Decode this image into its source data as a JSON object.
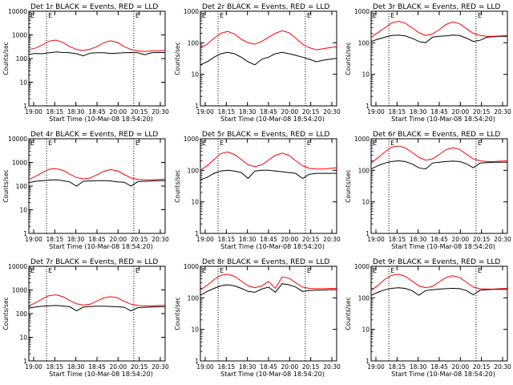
{
  "panel_titles": [
    "Det 1r BLACK = Events, RED = LLD",
    "Det 2r BLACK = Events, RED = LLD",
    "Det 3r BLACK = Events, RED = LLD",
    "Det 4r BLACK = Events, RED = LLD",
    "Det 5r BLACK = Events, RED = LLD",
    "Det 6r BLACK = Events, RED = LLD",
    "Det 7r BLACK = Events, RED = LLD",
    "Det 8r BLACK = Events, RED = LLD",
    "Det 9r BLACK = Events, RED = LLD"
  ],
  "xlabel": "Start Time (10-Mar-08 18:54:20)",
  "ylabel": "Counts/sec",
  "marker_labels": [
    "E",
    "E"
  ],
  "x_tick_labels": [
    "19:00",
    "18:15",
    "18:30",
    "18:45",
    "20:00",
    "20:15",
    "20:30"
  ],
  "y_tick_labels": [
    "1",
    "10",
    "100",
    "1000",
    "10000"
  ],
  "colors": {
    "events": "#000000",
    "lld": "#ff0000",
    "axes": "#000000"
  },
  "chart_data": [
    {
      "type": "line",
      "title": "Det 1r BLACK = Events, RED = LLD",
      "xlabel": "Start Time (10-Mar-08 18:54:20)",
      "ylabel": "Counts/sec",
      "yscale": "log",
      "ylim": [
        1,
        10000
      ],
      "x": [
        0,
        0.05,
        0.1,
        0.15,
        0.2,
        0.25,
        0.3,
        0.35,
        0.4,
        0.45,
        0.5,
        0.55,
        0.6,
        0.65,
        0.7,
        0.75,
        0.8,
        0.85,
        0.9,
        0.95,
        1.0
      ],
      "series": [
        {
          "name": "Events",
          "values": [
            150,
            165,
            160,
            175,
            190,
            180,
            175,
            160,
            130,
            170,
            175,
            175,
            165,
            170,
            175,
            180,
            175,
            145,
            175,
            180,
            180
          ]
        },
        {
          "name": "LLD",
          "values": [
            240,
            280,
            380,
            550,
            600,
            480,
            320,
            240,
            220,
            250,
            320,
            470,
            560,
            480,
            320,
            240,
            210,
            200,
            210,
            215,
            220
          ]
        }
      ],
      "markers": [
        "E",
        "E"
      ]
    },
    {
      "type": "line",
      "title": "Det 2r BLACK = Events, RED = LLD",
      "xlabel": "Start Time (10-Mar-08 18:54:20)",
      "ylabel": "Counts/sec",
      "yscale": "log",
      "ylim": [
        1,
        1000
      ],
      "x": [
        0,
        0.05,
        0.1,
        0.15,
        0.2,
        0.25,
        0.3,
        0.35,
        0.4,
        0.45,
        0.5,
        0.55,
        0.6,
        0.65,
        0.7,
        0.75,
        0.8,
        0.85,
        0.9,
        0.95,
        1.0
      ],
      "series": [
        {
          "name": "Events",
          "values": [
            20,
            25,
            35,
            45,
            50,
            45,
            35,
            25,
            20,
            30,
            35,
            45,
            50,
            45,
            40,
            35,
            30,
            25,
            28,
            30,
            32
          ]
        },
        {
          "name": "LLD",
          "values": [
            70,
            90,
            140,
            200,
            230,
            190,
            130,
            100,
            90,
            110,
            150,
            200,
            240,
            210,
            140,
            90,
            70,
            60,
            65,
            70,
            75
          ]
        }
      ],
      "markers": [
        "E",
        "E"
      ]
    },
    {
      "type": "line",
      "title": "Det 3r BLACK = Events, RED = LLD",
      "xlabel": "Start Time (10-Mar-08 18:54:20)",
      "ylabel": "Counts/sec",
      "yscale": "log",
      "ylim": [
        1,
        1000
      ],
      "x": [
        0,
        0.05,
        0.1,
        0.15,
        0.2,
        0.25,
        0.3,
        0.35,
        0.4,
        0.45,
        0.5,
        0.55,
        0.6,
        0.65,
        0.7,
        0.75,
        0.8,
        0.85,
        0.9,
        0.95,
        1.0
      ],
      "series": [
        {
          "name": "Events",
          "values": [
            110,
            130,
            150,
            170,
            175,
            165,
            140,
            110,
            100,
            150,
            160,
            165,
            175,
            170,
            140,
            110,
            120,
            150,
            155,
            160,
            160
          ]
        },
        {
          "name": "LLD",
          "values": [
            150,
            210,
            300,
            420,
            480,
            420,
            300,
            210,
            170,
            190,
            260,
            380,
            460,
            400,
            280,
            200,
            170,
            160,
            160,
            165,
            170
          ]
        }
      ],
      "markers": [
        "E",
        "E"
      ]
    },
    {
      "type": "line",
      "title": "Det 4r BLACK = Events, RED = LLD",
      "xlabel": "Start Time (10-Mar-08 18:54:20)",
      "ylabel": "Counts/sec",
      "yscale": "log",
      "ylim": [
        1,
        10000
      ],
      "x": [
        0,
        0.05,
        0.1,
        0.15,
        0.2,
        0.25,
        0.3,
        0.35,
        0.4,
        0.45,
        0.5,
        0.55,
        0.6,
        0.65,
        0.7,
        0.75,
        0.8,
        0.85,
        0.9,
        0.95,
        1.0
      ],
      "series": [
        {
          "name": "Events",
          "values": [
            140,
            160,
            170,
            180,
            185,
            170,
            150,
            100,
            160,
            165,
            170,
            170,
            165,
            150,
            145,
            100,
            155,
            160,
            165,
            170,
            170
          ]
        },
        {
          "name": "LLD",
          "values": [
            190,
            260,
            380,
            520,
            550,
            460,
            320,
            230,
            200,
            220,
            300,
            420,
            500,
            440,
            310,
            220,
            190,
            185,
            185,
            190,
            195
          ]
        }
      ],
      "markers": [
        "E",
        "E"
      ]
    },
    {
      "type": "line",
      "title": "Det 5r BLACK = Events, RED = LLD",
      "xlabel": "Start Time (10-Mar-08 18:54:20)",
      "ylabel": "Counts/sec",
      "yscale": "log",
      "ylim": [
        1,
        1000
      ],
      "x": [
        0,
        0.05,
        0.1,
        0.15,
        0.2,
        0.25,
        0.3,
        0.35,
        0.4,
        0.45,
        0.5,
        0.55,
        0.6,
        0.65,
        0.7,
        0.75,
        0.8,
        0.85,
        0.9,
        0.95,
        1.0
      ],
      "series": [
        {
          "name": "Events",
          "values": [
            50,
            60,
            80,
            95,
            100,
            95,
            85,
            55,
            95,
            100,
            100,
            95,
            90,
            85,
            80,
            55,
            75,
            80,
            80,
            80,
            80
          ]
        },
        {
          "name": "LLD",
          "values": [
            100,
            140,
            220,
            340,
            380,
            320,
            220,
            150,
            130,
            150,
            210,
            300,
            350,
            300,
            200,
            140,
            115,
            110,
            110,
            115,
            120
          ]
        }
      ],
      "markers": [
        "E",
        "E"
      ]
    },
    {
      "type": "line",
      "title": "Det 6r BLACK = Events, RED = LLD",
      "xlabel": "Start Time (10-Mar-08 18:54:20)",
      "ylabel": "Counts/sec",
      "yscale": "log",
      "ylim": [
        1,
        1000
      ],
      "x": [
        0,
        0.05,
        0.1,
        0.15,
        0.2,
        0.25,
        0.3,
        0.35,
        0.4,
        0.45,
        0.5,
        0.55,
        0.6,
        0.65,
        0.7,
        0.75,
        0.8,
        0.85,
        0.9,
        0.95,
        1.0
      ],
      "series": [
        {
          "name": "Events",
          "values": [
            110,
            140,
            170,
            190,
            200,
            190,
            160,
            120,
            110,
            170,
            180,
            190,
            195,
            190,
            160,
            120,
            170,
            175,
            180,
            180,
            180
          ]
        },
        {
          "name": "LLD",
          "values": [
            170,
            250,
            380,
            540,
            590,
            520,
            370,
            260,
            210,
            230,
            320,
            450,
            520,
            460,
            320,
            230,
            200,
            190,
            190,
            195,
            200
          ]
        }
      ],
      "markers": [
        "E",
        "E"
      ]
    },
    {
      "type": "line",
      "title": "Det 7r BLACK = Events, RED = LLD",
      "xlabel": "Start Time (10-Mar-08 18:54:20)",
      "ylabel": "Counts/sec",
      "yscale": "log",
      "ylim": [
        1,
        10000
      ],
      "x": [
        0,
        0.05,
        0.1,
        0.15,
        0.2,
        0.25,
        0.3,
        0.35,
        0.4,
        0.45,
        0.5,
        0.55,
        0.6,
        0.65,
        0.7,
        0.75,
        0.8,
        0.85,
        0.9,
        0.95,
        1.0
      ],
      "series": [
        {
          "name": "Events",
          "values": [
            170,
            190,
            205,
            215,
            220,
            210,
            195,
            130,
            190,
            200,
            205,
            205,
            200,
            195,
            185,
            130,
            180,
            185,
            190,
            195,
            195
          ]
        },
        {
          "name": "LLD",
          "values": [
            210,
            290,
            420,
            580,
            620,
            520,
            360,
            260,
            230,
            250,
            340,
            460,
            520,
            470,
            330,
            250,
            220,
            215,
            215,
            220,
            225
          ]
        }
      ],
      "markers": [
        "E",
        "E"
      ]
    },
    {
      "type": "line",
      "title": "Det 8r BLACK = Events, RED = LLD",
      "xlabel": "Start Time (10-Mar-08 18:54:20)",
      "ylabel": "Counts/sec",
      "yscale": "log",
      "ylim": [
        1,
        1000
      ],
      "x": [
        0,
        0.05,
        0.1,
        0.15,
        0.2,
        0.25,
        0.3,
        0.35,
        0.4,
        0.45,
        0.5,
        0.55,
        0.6,
        0.65,
        0.7,
        0.75,
        0.8,
        0.85,
        0.9,
        0.95,
        1.0
      ],
      "series": [
        {
          "name": "Events",
          "values": [
            120,
            160,
            200,
            240,
            260,
            240,
            200,
            160,
            150,
            190,
            220,
            150,
            280,
            260,
            220,
            160,
            170,
            175,
            175,
            180,
            180
          ]
        },
        {
          "name": "LLD",
          "values": [
            180,
            250,
            380,
            520,
            560,
            480,
            340,
            240,
            210,
            240,
            330,
            200,
            460,
            420,
            300,
            220,
            200,
            195,
            195,
            200,
            200
          ]
        }
      ],
      "markers": [
        "E",
        "E"
      ]
    },
    {
      "type": "line",
      "title": "Det 9r BLACK = Events, RED = LLD",
      "xlabel": "Start Time (10-Mar-08 18:54:20)",
      "ylabel": "Counts/sec",
      "yscale": "log",
      "ylim": [
        1,
        1000
      ],
      "x": [
        0,
        0.05,
        0.1,
        0.15,
        0.2,
        0.25,
        0.3,
        0.35,
        0.4,
        0.45,
        0.5,
        0.55,
        0.6,
        0.65,
        0.7,
        0.75,
        0.8,
        0.85,
        0.9,
        0.95,
        1.0
      ],
      "series": [
        {
          "name": "Events",
          "values": [
            120,
            150,
            180,
            200,
            210,
            200,
            170,
            120,
            170,
            180,
            190,
            195,
            200,
            195,
            170,
            125,
            175,
            180,
            185,
            185,
            185
          ]
        },
        {
          "name": "LLD",
          "values": [
            170,
            250,
            380,
            520,
            560,
            480,
            340,
            240,
            210,
            230,
            320,
            440,
            500,
            440,
            310,
            220,
            195,
            190,
            190,
            195,
            200
          ]
        }
      ],
      "markers": [
        "E",
        "E"
      ]
    }
  ]
}
